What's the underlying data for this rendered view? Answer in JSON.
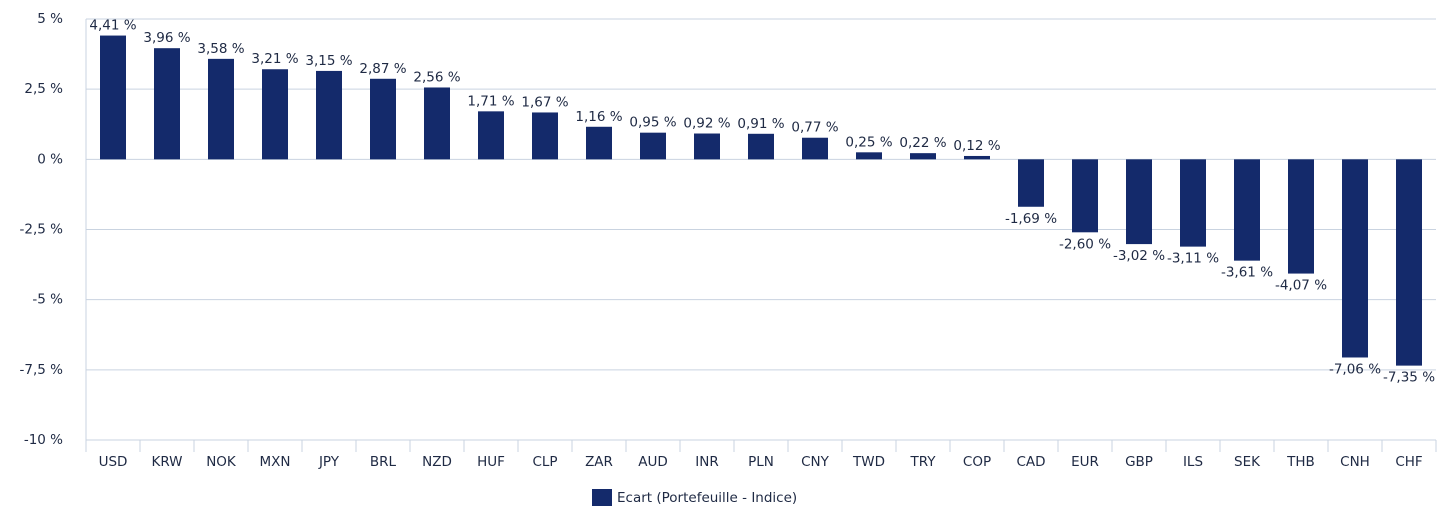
{
  "chart_data": {
    "type": "bar",
    "categories": [
      "USD",
      "KRW",
      "NOK",
      "MXN",
      "JPY",
      "BRL",
      "NZD",
      "HUF",
      "CLP",
      "ZAR",
      "AUD",
      "INR",
      "PLN",
      "CNY",
      "TWD",
      "TRY",
      "COP",
      "CAD",
      "EUR",
      "GBP",
      "ILS",
      "SEK",
      "THB",
      "CNH",
      "CHF"
    ],
    "series": [
      {
        "name": "Ecart (Portefeuille - Indice)",
        "color": "#142a6b",
        "values": [
          4.41,
          3.96,
          3.58,
          3.21,
          3.15,
          2.87,
          2.56,
          1.71,
          1.67,
          1.16,
          0.95,
          0.92,
          0.91,
          0.77,
          0.25,
          0.22,
          0.12,
          -1.69,
          -2.6,
          -3.02,
          -3.11,
          -3.61,
          -4.07,
          -7.06,
          -7.35
        ],
        "value_labels": [
          "4,41 %",
          "3,96 %",
          "3,58 %",
          "3,21 %",
          "3,15 %",
          "2,87 %",
          "2,56 %",
          "1,71 %",
          "1,67 %",
          "1,16 %",
          "0,95 %",
          "0,92 %",
          "0,91 %",
          "0,77 %",
          "0,25 %",
          "0,22 %",
          "0,12 %",
          "-1,69 %",
          "-2,60 %",
          "-3,02 %",
          "-3,11 %",
          "-3,61 %",
          "-4,07 %",
          "-7,06 %",
          "-7,35 %"
        ]
      }
    ],
    "ylim": [
      -10,
      5
    ],
    "yticks": [
      {
        "value": -10,
        "label": "-10 %"
      },
      {
        "value": -7.5,
        "label": "-7,5 %"
      },
      {
        "value": -5,
        "label": "-5 %"
      },
      {
        "value": -2.5,
        "label": "-2,5 %"
      },
      {
        "value": 0,
        "label": "0 %"
      },
      {
        "value": 2.5,
        "label": "2,5 %"
      },
      {
        "value": 5,
        "label": "5 %"
      }
    ],
    "grid": true,
    "legend": "bottom"
  }
}
